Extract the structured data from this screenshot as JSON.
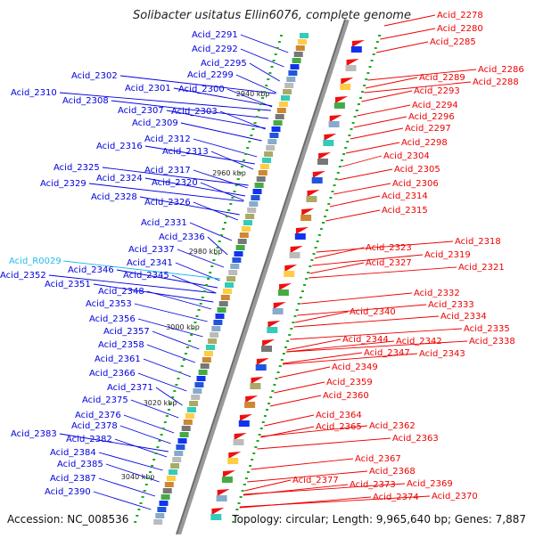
{
  "title": "Solibacter usitatus Ellin6076, complete genome",
  "footer": {
    "accession": "Accession: NC_008536",
    "summary": "Topology: circular; Length: 9,965,640 bp; Genes: 7,887"
  },
  "colors": {
    "left_label": "#0000dd",
    "right_label": "#ee0000",
    "rna_label": "#22bbee",
    "axis": "#888888",
    "forward_gene": "#1133ee",
    "reverse_gene": "#ee1111"
  },
  "scale_ticks": [
    "2940 kbp",
    "2960 kbp",
    "2980 kbp",
    "3000 kbp",
    "3020 kbp",
    "3040 kbp"
  ],
  "left_labels": [
    "Acid_2291",
    "Acid_2292",
    "Acid_2295",
    "Acid_2299",
    "Acid_2302",
    "Acid_2301",
    "Acid_2300",
    "Acid_2310",
    "Acid_2308",
    "Acid_2307",
    "Acid_2303",
    "Acid_2309",
    "Acid_2312",
    "Acid_2316",
    "Acid_2313",
    "Acid_2317",
    "Acid_2325",
    "Acid_2324",
    "Acid_2329",
    "Acid_2320",
    "Acid_2328",
    "Acid_2326",
    "Acid_2331",
    "Acid_2336",
    "Acid_2337",
    "Acid_2341",
    "Acid_R0029",
    "Acid_2346",
    "Acid_2345",
    "Acid_2352",
    "Acid_2351",
    "Acid_2348",
    "Acid_2353",
    "Acid_2356",
    "Acid_2357",
    "Acid_2358",
    "Acid_2361",
    "Acid_2366",
    "Acid_2371",
    "Acid_2375",
    "Acid_2376",
    "Acid_2378",
    "Acid_2383",
    "Acid_2382",
    "Acid_2384",
    "Acid_2385",
    "Acid_2387",
    "Acid_2390"
  ],
  "right_labels": [
    "Acid_2278",
    "Acid_2280",
    "Acid_2285",
    "Acid_2286",
    "Acid_2289",
    "Acid_2288",
    "Acid_2293",
    "Acid_2294",
    "Acid_2296",
    "Acid_2297",
    "Acid_2298",
    "Acid_2304",
    "Acid_2305",
    "Acid_2306",
    "Acid_2314",
    "Acid_2315",
    "Acid_2318",
    "Acid_2323",
    "Acid_2319",
    "Acid_2327",
    "Acid_2321",
    "Acid_2332",
    "Acid_2333",
    "Acid_2340",
    "Acid_2334",
    "Acid_2335",
    "Acid_2338",
    "Acid_2344",
    "Acid_2342",
    "Acid_2347",
    "Acid_2343",
    "Acid_2349",
    "Acid_2359",
    "Acid_2360",
    "Acid_2364",
    "Acid_2365",
    "Acid_2362",
    "Acid_2363",
    "Acid_2367",
    "Acid_2368",
    "Acid_2377",
    "Acid_2373",
    "Acid_2369",
    "Acid_2374",
    "Acid_2370"
  ]
}
